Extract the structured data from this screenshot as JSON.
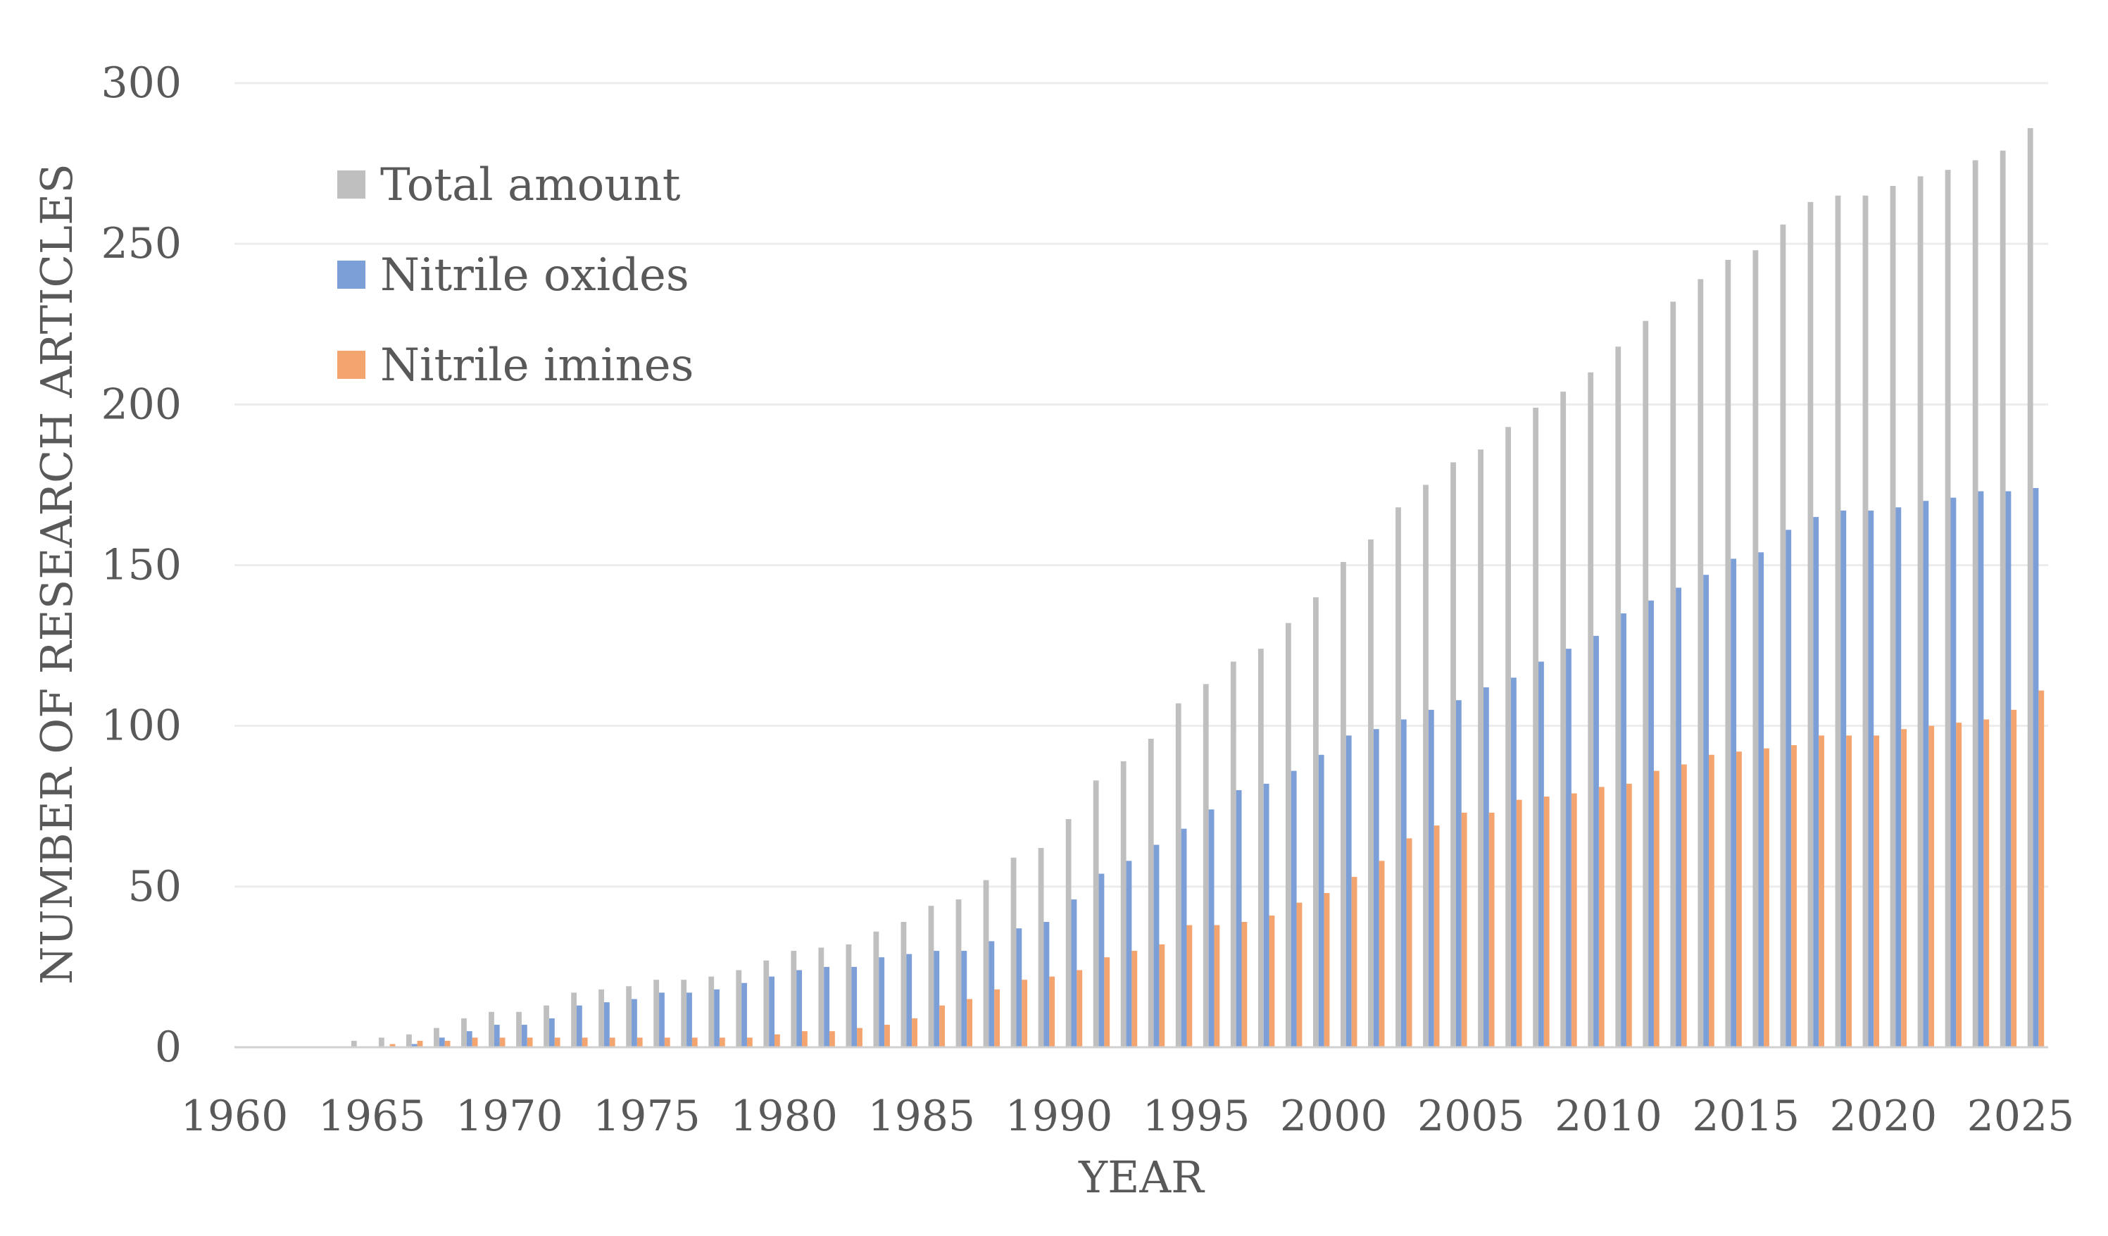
{
  "chart_data": {
    "type": "bar",
    "title": "",
    "xlabel": "YEAR",
    "ylabel": "NUMBER OF RESEARCH ARTICLES",
    "ylim": [
      0,
      300
    ],
    "yticks": [
      "0",
      "50",
      "100",
      "150",
      "200",
      "250",
      "300"
    ],
    "xticks": [
      "1960",
      "1965",
      "1970",
      "1975",
      "1980",
      "1985",
      "1990",
      "1995",
      "2000",
      "2005",
      "2010",
      "2015",
      "2020",
      "2025"
    ],
    "grid": true,
    "legend_position": "top-left",
    "categories": [
      1960,
      1961,
      1962,
      1963,
      1964,
      1965,
      1966,
      1967,
      1968,
      1969,
      1970,
      1971,
      1972,
      1973,
      1974,
      1975,
      1976,
      1977,
      1978,
      1979,
      1980,
      1981,
      1982,
      1983,
      1984,
      1985,
      1986,
      1987,
      1988,
      1989,
      1990,
      1991,
      1992,
      1993,
      1994,
      1995,
      1996,
      1997,
      1998,
      1999,
      2000,
      2001,
      2002,
      2003,
      2004,
      2005,
      2006,
      2007,
      2008,
      2009,
      2010,
      2011,
      2012,
      2013,
      2014,
      2015,
      2016,
      2017,
      2018,
      2019,
      2020,
      2021,
      2022,
      2023,
      2024,
      2025
    ],
    "series": [
      {
        "name": "Total amount",
        "color": "#bfbfbf",
        "values": [
          0,
          0,
          0,
          0,
          2,
          3,
          4,
          6,
          9,
          11,
          11,
          13,
          17,
          18,
          19,
          21,
          21,
          22,
          24,
          27,
          30,
          31,
          32,
          36,
          39,
          44,
          46,
          52,
          59,
          62,
          71,
          83,
          89,
          96,
          107,
          113,
          120,
          124,
          132,
          140,
          151,
          158,
          168,
          175,
          182,
          186,
          193,
          199,
          204,
          210,
          218,
          226,
          232,
          239,
          245,
          248,
          256,
          263,
          265,
          265,
          268,
          271,
          273,
          276,
          279,
          286
        ]
      },
      {
        "name": "Nitrile oxides",
        "color": "#7d9fd8",
        "values": [
          0,
          0,
          0,
          0,
          0,
          0,
          1,
          3,
          5,
          7,
          7,
          9,
          13,
          14,
          15,
          17,
          17,
          18,
          20,
          22,
          24,
          25,
          25,
          28,
          29,
          30,
          30,
          33,
          37,
          39,
          46,
          54,
          58,
          63,
          68,
          74,
          80,
          82,
          86,
          91,
          97,
          99,
          102,
          105,
          108,
          112,
          115,
          120,
          124,
          128,
          135,
          139,
          143,
          147,
          152,
          154,
          161,
          165,
          167,
          167,
          168,
          170,
          171,
          173,
          173,
          174
        ]
      },
      {
        "name": "Nitrile imines",
        "color": "#f4a46f",
        "values": [
          0,
          0,
          0,
          0,
          0,
          1,
          2,
          2,
          3,
          3,
          3,
          3,
          3,
          3,
          3,
          3,
          3,
          3,
          3,
          4,
          5,
          5,
          6,
          7,
          9,
          13,
          15,
          18,
          21,
          22,
          24,
          28,
          30,
          32,
          38,
          38,
          39,
          41,
          45,
          48,
          53,
          58,
          65,
          69,
          73,
          73,
          77,
          78,
          79,
          81,
          82,
          86,
          88,
          91,
          92,
          93,
          94,
          97,
          97,
          97,
          99,
          100,
          101,
          102,
          105,
          111
        ]
      }
    ]
  }
}
